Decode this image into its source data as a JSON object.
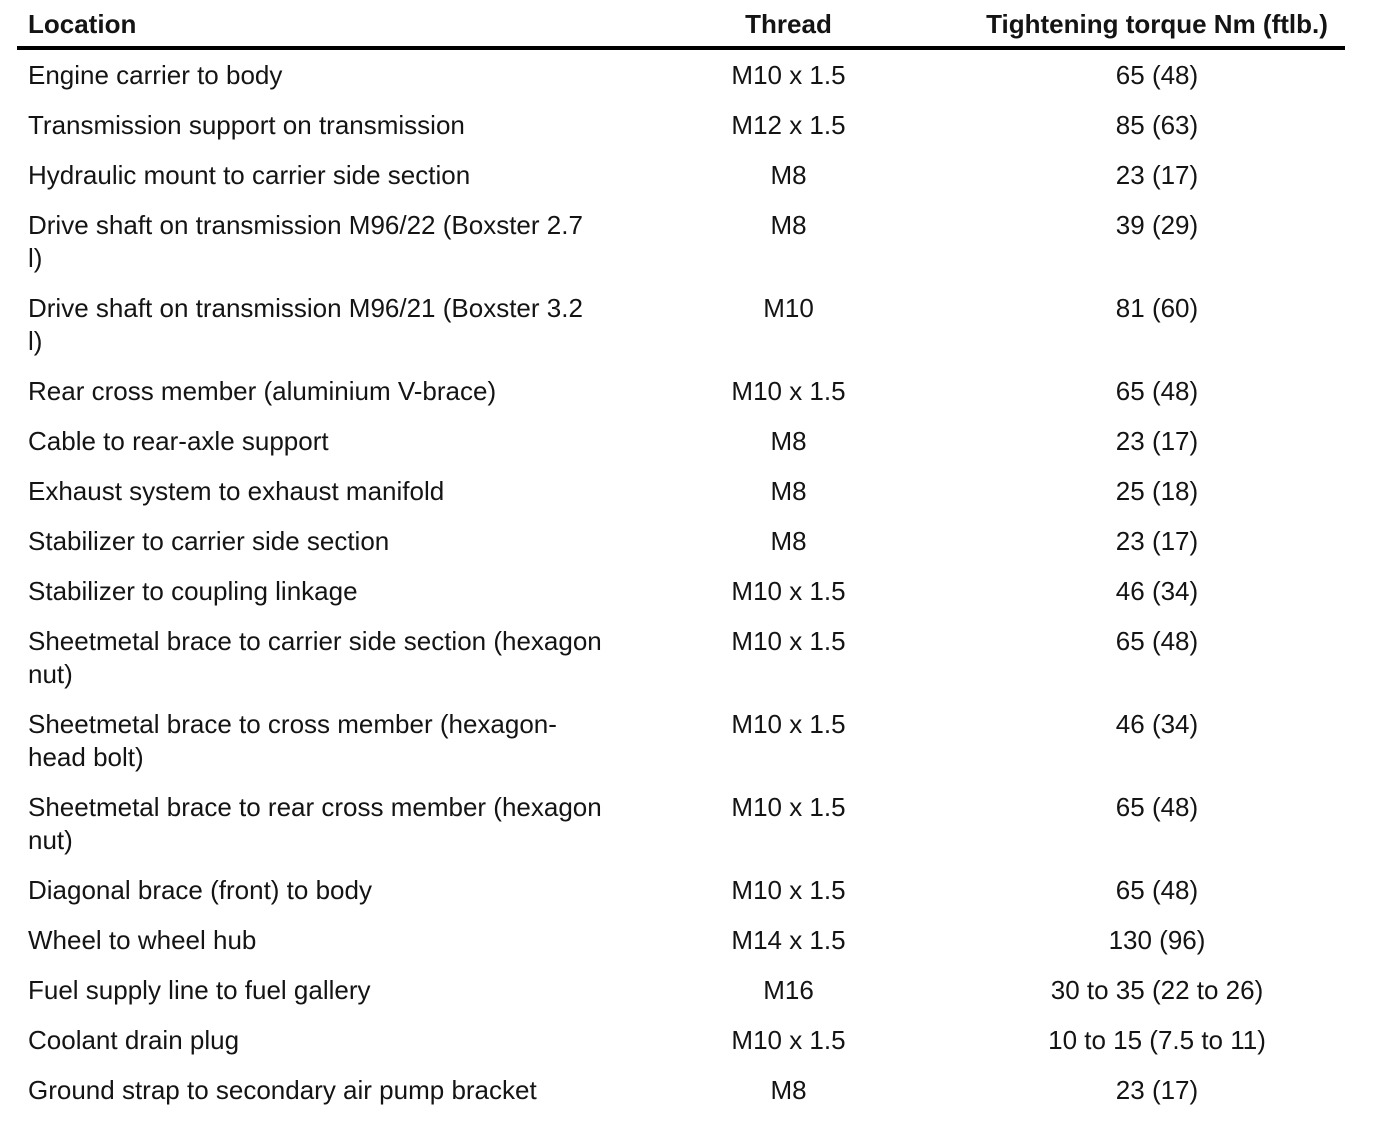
{
  "table": {
    "headers": {
      "location": "Location",
      "thread": "Thread",
      "torque": "Tightening torque Nm (ftlb.)"
    },
    "rows": [
      {
        "location": "Engine carrier to body",
        "thread": "M10 x 1.5",
        "torque": "65 (48)"
      },
      {
        "location": "Transmission support on transmission",
        "thread": "M12 x 1.5",
        "torque": "85 (63)"
      },
      {
        "location": "Hydraulic mount to carrier side section",
        "thread": "M8",
        "torque": "23 (17)"
      },
      {
        "location": "Drive shaft on transmission M96/22 (Boxster 2.7\nl)",
        "thread": "M8",
        "torque": "39 (29)"
      },
      {
        "location": "Drive shaft on transmission M96/21 (Boxster 3.2\nl)",
        "thread": "M10",
        "torque": "81 (60)"
      },
      {
        "location": "Rear cross member (aluminium V-brace)",
        "thread": "M10 x 1.5",
        "torque": "65 (48)"
      },
      {
        "location": "Cable to rear-axle support",
        "thread": "M8",
        "torque": "23 (17)"
      },
      {
        "location": "Exhaust system to exhaust manifold",
        "thread": "M8",
        "torque": "25 (18)"
      },
      {
        "location": "Stabilizer to carrier side section",
        "thread": "M8",
        "torque": "23 (17)"
      },
      {
        "location": "Stabilizer to coupling linkage",
        "thread": "M10 x 1.5",
        "torque": "46 (34)"
      },
      {
        "location": "Sheetmetal brace to carrier side section (hexagon\nnut)",
        "thread": "M10 x 1.5",
        "torque": "65 (48)"
      },
      {
        "location": "Sheetmetal brace to cross member (hexagon-\nhead bolt)",
        "thread": "M10 x 1.5",
        "torque": "46 (34)"
      },
      {
        "location": "Sheetmetal brace to rear cross member (hexagon\nnut)",
        "thread": "M10 x 1.5",
        "torque": "65 (48)"
      },
      {
        "location": "Diagonal brace (front) to body",
        "thread": "M10 x 1.5",
        "torque": "65 (48)"
      },
      {
        "location": "Wheel to wheel hub",
        "thread": "M14 x 1.5",
        "torque": "130 (96)"
      },
      {
        "location": "Fuel supply line to fuel gallery",
        "thread": "M16",
        "torque": "30 to 35 (22 to 26)"
      },
      {
        "location": "Coolant drain plug",
        "thread": "M10 x 1.5",
        "torque": "10 to 15 (7.5 to 11)"
      },
      {
        "location": "Ground strap to secondary air pump bracket",
        "thread": "M8",
        "torque": "23 (17)"
      }
    ]
  },
  "colors": {
    "background": "#ffffff",
    "text": "#141414",
    "header_rule": "#000000"
  }
}
